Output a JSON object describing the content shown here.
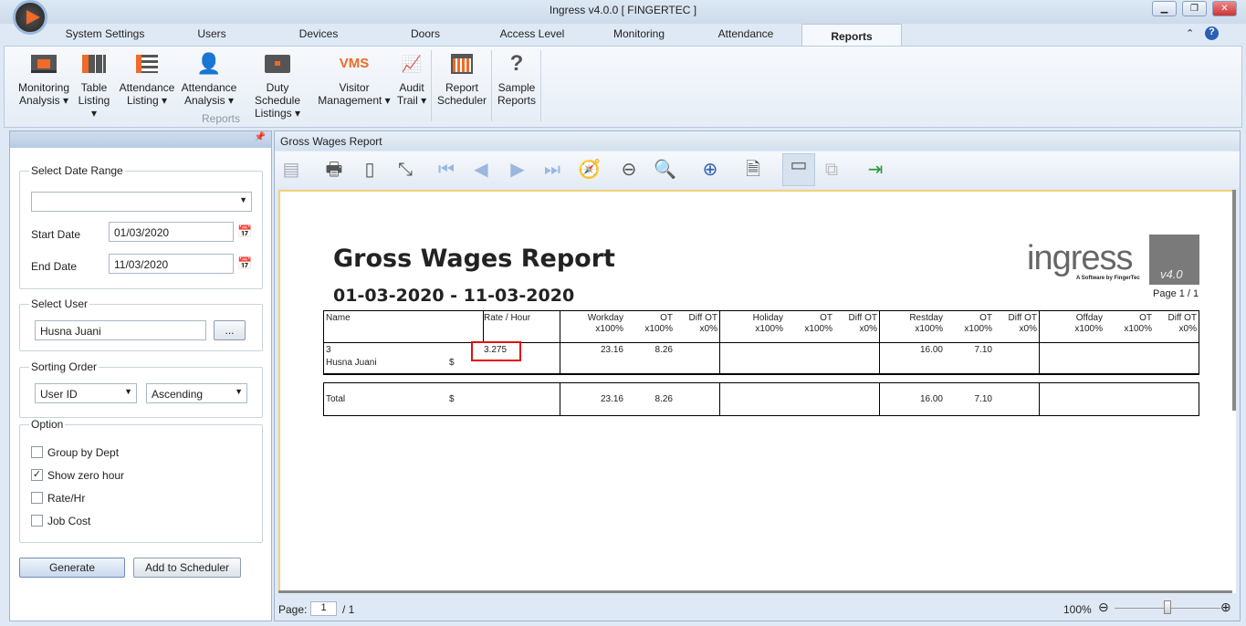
{
  "window": {
    "title": "Ingress v4.0.0 [ FINGERTEC ]"
  },
  "tabs": [
    "System Settings",
    "Users",
    "Devices",
    "Doors",
    "Access Level",
    "Monitoring",
    "Attendance",
    "Reports"
  ],
  "ribbon": {
    "group_label": "Reports",
    "buttons": [
      {
        "l1": "Monitoring",
        "l2": "Analysis ▾"
      },
      {
        "l1": "Table",
        "l2": "Listing ▾"
      },
      {
        "l1": "Attendance",
        "l2": "Listing ▾"
      },
      {
        "l1": "Attendance",
        "l2": "Analysis ▾"
      },
      {
        "l1": "Duty Schedule",
        "l2": "Listings ▾"
      },
      {
        "l1": "Visitor",
        "l2": "Management ▾",
        "icon_text": "VMS"
      },
      {
        "l1": "Audit",
        "l2": "Trail ▾"
      },
      {
        "l1": "Report",
        "l2": "Scheduler"
      },
      {
        "l1": "Sample",
        "l2": "Reports",
        "icon_text": "?"
      }
    ]
  },
  "left": {
    "date_range_label": "Select Date Range",
    "date_range_value": "",
    "start_label": "Start Date",
    "start_value": "01/03/2020",
    "end_label": "End Date",
    "end_value": "11/03/2020",
    "user_label": "Select User",
    "user_value": "Husna Juani",
    "browse": "...",
    "sort_label": "Sorting Order",
    "sort_by": "User ID",
    "sort_dir": "Ascending",
    "option_label": "Option",
    "options": [
      {
        "label": "Group by Dept",
        "checked": false
      },
      {
        "label": "Show zero hour",
        "checked": true
      },
      {
        "label": "Rate/Hr",
        "checked": false
      },
      {
        "label": "Job Cost",
        "checked": false
      }
    ],
    "generate": "Generate",
    "add_scheduler": "Add to Scheduler"
  },
  "report_panel": {
    "title": "Gross Wages Report",
    "page_label": "Page:",
    "page_value": "1",
    "page_total": "/ 1",
    "zoom": "100%",
    "zoom_level": 0.5
  },
  "report": {
    "title": "Gross Wages Report",
    "date_range": "01-03-2020 - 11-03-2020",
    "logo_text": "ingress",
    "logo_sub": "A Software by FingerTec",
    "version": "v4.0",
    "page": "Page 1 / 1",
    "headers": {
      "name": "Name",
      "rate": "Rate / Hour",
      "groups": [
        {
          "a": "Workday",
          "b": "OT",
          "c": "Diff OT",
          "am": "x100%",
          "bm": "x100%",
          "cm": "x0%"
        },
        {
          "a": "Holiday",
          "b": "OT",
          "c": "Diff OT",
          "am": "x100%",
          "bm": "x100%",
          "cm": "x0%"
        },
        {
          "a": "Restday",
          "b": "OT",
          "c": "Diff OT",
          "am": "x100%",
          "bm": "x100%",
          "cm": "x0%"
        },
        {
          "a": "Offday",
          "b": "OT",
          "c": "Diff OT",
          "am": "x100%",
          "bm": "x100%",
          "cm": "x0%"
        }
      ]
    },
    "row": {
      "id": "3",
      "name": "Husna Juani",
      "currency": "$",
      "rate": "3.275",
      "vals": [
        "23.16",
        "8.26",
        "",
        "",
        "",
        "",
        "16.00",
        "7.10",
        "",
        "",
        "",
        ""
      ]
    },
    "total": {
      "label": "Total",
      "currency": "$",
      "vals": [
        "23.16",
        "8.26",
        "",
        "",
        "",
        "",
        "16.00",
        "7.10",
        "",
        "",
        "",
        ""
      ]
    }
  },
  "colors": {
    "highlight": "#e01010",
    "accent": "#f06a28"
  }
}
